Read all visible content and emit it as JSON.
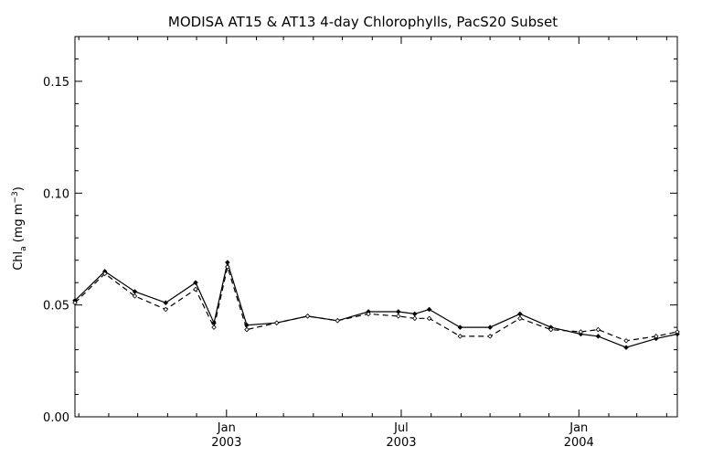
{
  "chart_data": {
    "type": "line",
    "title": "MODISA AT15 & AT13 4-day Chlorophylls, PacS20 Subset",
    "ylabel": {
      "main": "Chl",
      "sub": "a",
      "units_open": "(mg m",
      "units_sup": "−3",
      "units_close": ")"
    },
    "xlabel": "",
    "ylim": [
      0,
      0.17
    ],
    "xlim": [
      "2002-07-28",
      "2004-04-12"
    ],
    "y_ticks": [
      "0.00",
      "0.05",
      "0.10",
      "0.15"
    ],
    "y_tick_values": [
      0,
      0.05,
      0.1,
      0.15
    ],
    "y_minor_step": 0.01,
    "x_major_ticks": [
      {
        "date": "2003-01-01",
        "month": "Jan",
        "year": "2003"
      },
      {
        "date": "2003-07-01",
        "month": "Jul",
        "year": "2003"
      },
      {
        "date": "2004-01-01",
        "month": "Jan",
        "year": "2004"
      }
    ],
    "x_minor_ticks": [
      "2002-08-01",
      "2002-09-01",
      "2002-10-01",
      "2002-11-01",
      "2002-12-01",
      "2003-02-01",
      "2003-03-01",
      "2003-04-01",
      "2003-05-01",
      "2003-06-01",
      "2003-08-01",
      "2003-09-01",
      "2003-10-01",
      "2003-11-01",
      "2003-12-01",
      "2004-02-01",
      "2004-03-01",
      "2004-04-01"
    ],
    "grid": false,
    "series": [
      {
        "style": "solid",
        "x": [
          "2002-07-28",
          "2002-08-28",
          "2002-09-28",
          "2002-10-30",
          "2002-11-30",
          "2002-12-19",
          "2003-01-02",
          "2003-01-22",
          "2003-02-22",
          "2003-03-26",
          "2003-04-26",
          "2003-05-28",
          "2003-06-28",
          "2003-07-15",
          "2003-07-30",
          "2003-08-31",
          "2003-10-01",
          "2003-11-01",
          "2003-12-03",
          "2004-01-03",
          "2004-01-21",
          "2004-02-19",
          "2004-03-21",
          "2004-04-12"
        ],
        "y": [
          0.052,
          0.065,
          0.056,
          0.051,
          0.06,
          0.042,
          0.069,
          0.041,
          0.042,
          0.045,
          0.043,
          0.047,
          0.047,
          0.046,
          0.048,
          0.04,
          0.04,
          0.046,
          0.04,
          0.037,
          0.036,
          0.031,
          0.035,
          0.037
        ],
        "color": "#000000"
      },
      {
        "style": "dashed",
        "x": [
          "2002-07-28",
          "2002-08-28",
          "2002-09-28",
          "2002-10-30",
          "2002-11-30",
          "2002-12-19",
          "2003-01-02",
          "2003-01-22",
          "2003-02-22",
          "2003-03-26",
          "2003-04-26",
          "2003-05-28",
          "2003-06-28",
          "2003-07-15",
          "2003-07-30",
          "2003-08-31",
          "2003-10-01",
          "2003-11-01",
          "2003-12-03",
          "2004-01-03",
          "2004-01-21",
          "2004-02-19",
          "2004-03-21",
          "2004-04-12"
        ],
        "y": [
          0.051,
          0.064,
          0.054,
          0.048,
          0.057,
          0.04,
          0.067,
          0.039,
          0.042,
          0.045,
          0.043,
          0.046,
          0.045,
          0.044,
          0.044,
          0.036,
          0.036,
          0.044,
          0.039,
          0.038,
          0.039,
          0.034,
          0.036,
          0.038
        ],
        "color": "#000000"
      }
    ]
  }
}
